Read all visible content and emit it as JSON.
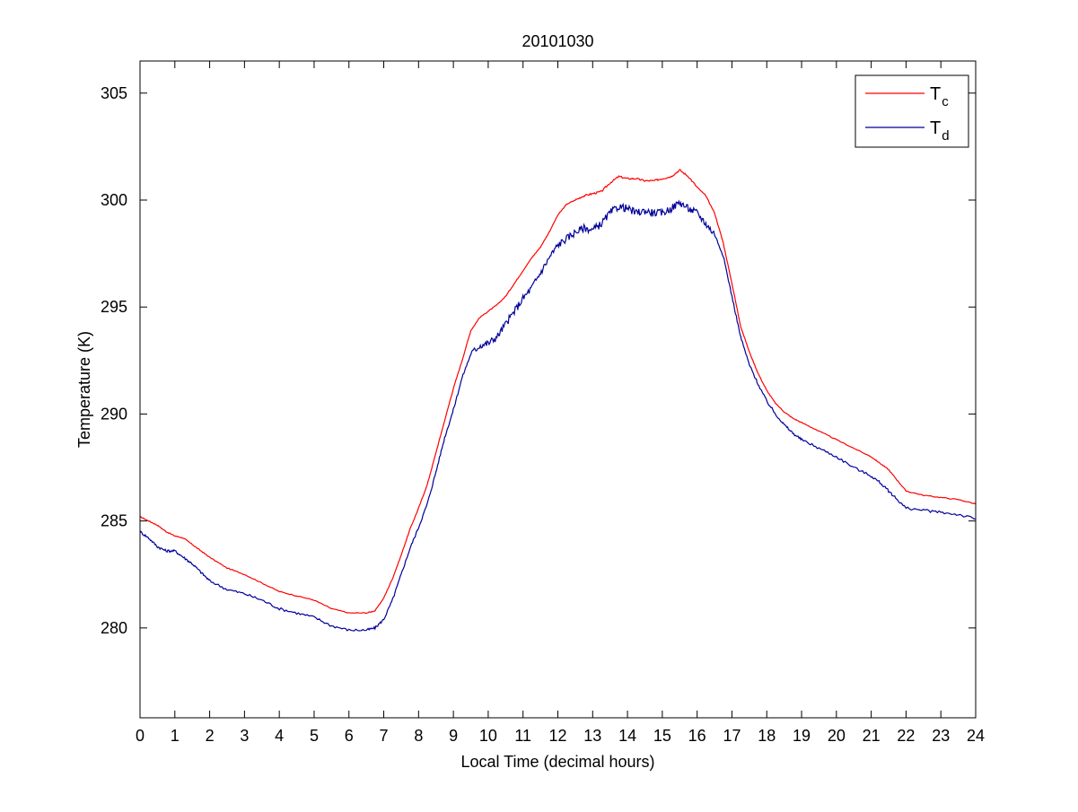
{
  "chart_data": {
    "type": "line",
    "title": "20101030",
    "xlabel": "Local Time (decimal hours)",
    "ylabel": "Temperature (K)",
    "xlim": [
      0,
      24
    ],
    "ylim": [
      275.8,
      306.5
    ],
    "xticks": [
      0,
      1,
      2,
      3,
      4,
      5,
      6,
      7,
      8,
      9,
      10,
      11,
      12,
      13,
      14,
      15,
      16,
      17,
      18,
      19,
      20,
      21,
      22,
      23,
      24
    ],
    "yticks": [
      280,
      285,
      290,
      295,
      300,
      305
    ],
    "grid": false,
    "legend_position": "top-right",
    "series": [
      {
        "name": "T",
        "subscript": "c",
        "color": "#ff0000",
        "x": [
          0,
          0.25,
          0.5,
          0.75,
          1,
          1.25,
          1.5,
          1.75,
          2,
          2.5,
          3,
          3.5,
          4,
          4.5,
          5,
          5.5,
          6,
          6.5,
          6.75,
          7,
          7.25,
          7.5,
          7.75,
          8,
          8.25,
          8.5,
          8.75,
          9,
          9.25,
          9.5,
          9.75,
          10,
          10.25,
          10.5,
          10.75,
          11,
          11.25,
          11.5,
          11.75,
          12,
          12.25,
          12.5,
          12.75,
          13,
          13.25,
          13.5,
          13.75,
          14,
          14.25,
          14.5,
          14.75,
          15,
          15.25,
          15.5,
          15.75,
          16,
          16.25,
          16.5,
          16.75,
          17,
          17.25,
          17.5,
          17.75,
          18,
          18.25,
          18.5,
          18.75,
          19,
          19.5,
          20,
          20.5,
          21,
          21.25,
          21.5,
          21.75,
          22,
          22.5,
          23,
          23.5,
          24
        ],
        "y": [
          285.2,
          285.0,
          284.8,
          284.5,
          284.3,
          284.2,
          283.9,
          283.6,
          283.3,
          282.8,
          282.5,
          282.1,
          281.7,
          281.5,
          281.3,
          280.9,
          280.7,
          280.7,
          280.8,
          281.4,
          282.3,
          283.4,
          284.6,
          285.6,
          286.7,
          288.2,
          289.7,
          291.2,
          292.5,
          293.9,
          294.5,
          294.8,
          295.1,
          295.5,
          296.1,
          296.7,
          297.3,
          297.8,
          298.5,
          299.3,
          299.8,
          300.0,
          300.2,
          300.3,
          300.4,
          300.8,
          301.1,
          301.0,
          301.0,
          300.9,
          300.9,
          301.0,
          301.1,
          301.4,
          301.1,
          300.6,
          300.2,
          299.4,
          298.0,
          296.1,
          294.1,
          292.9,
          291.9,
          291.1,
          290.5,
          290.1,
          289.8,
          289.6,
          289.2,
          288.8,
          288.4,
          288.0,
          287.7,
          287.4,
          286.9,
          286.4,
          286.2,
          286.1,
          286.0,
          285.8
        ]
      },
      {
        "name": "T",
        "subscript": "d",
        "color": "#000099",
        "x": [
          0,
          0.25,
          0.5,
          0.75,
          1,
          1.25,
          1.5,
          1.75,
          2,
          2.5,
          3,
          3.5,
          4,
          4.5,
          5,
          5.5,
          6,
          6.5,
          6.75,
          7,
          7.25,
          7.5,
          7.75,
          8,
          8.25,
          8.5,
          8.75,
          9,
          9.25,
          9.5,
          9.75,
          10,
          10.25,
          10.5,
          10.75,
          11,
          11.25,
          11.5,
          11.75,
          12,
          12.25,
          12.5,
          12.75,
          13,
          13.25,
          13.5,
          13.75,
          14,
          14.25,
          14.5,
          14.75,
          15,
          15.25,
          15.5,
          15.75,
          16,
          16.25,
          16.5,
          16.75,
          17,
          17.25,
          17.5,
          17.75,
          18,
          18.25,
          18.5,
          18.75,
          19,
          19.5,
          20,
          20.5,
          21,
          21.25,
          21.5,
          21.75,
          22,
          22.5,
          23,
          23.5,
          24
        ],
        "y": [
          284.5,
          284.2,
          283.8,
          283.6,
          283.6,
          283.3,
          283.0,
          282.6,
          282.2,
          281.8,
          281.6,
          281.3,
          280.9,
          280.7,
          280.5,
          280.1,
          279.9,
          279.9,
          280.0,
          280.4,
          281.3,
          282.5,
          283.7,
          284.7,
          285.8,
          287.3,
          288.9,
          290.2,
          291.7,
          292.8,
          293.2,
          293.3,
          293.6,
          294.2,
          294.8,
          295.4,
          295.9,
          296.6,
          297.3,
          297.9,
          298.2,
          298.5,
          298.7,
          298.6,
          298.9,
          299.4,
          299.7,
          299.6,
          299.4,
          299.5,
          299.4,
          299.4,
          299.6,
          299.9,
          299.6,
          299.4,
          298.9,
          298.4,
          297.4,
          295.5,
          293.6,
          292.3,
          291.4,
          290.6,
          290.0,
          289.5,
          289.1,
          288.8,
          288.4,
          288.0,
          287.5,
          287.1,
          286.8,
          286.4,
          286.0,
          285.6,
          285.5,
          285.4,
          285.3,
          285.1
        ]
      }
    ]
  }
}
